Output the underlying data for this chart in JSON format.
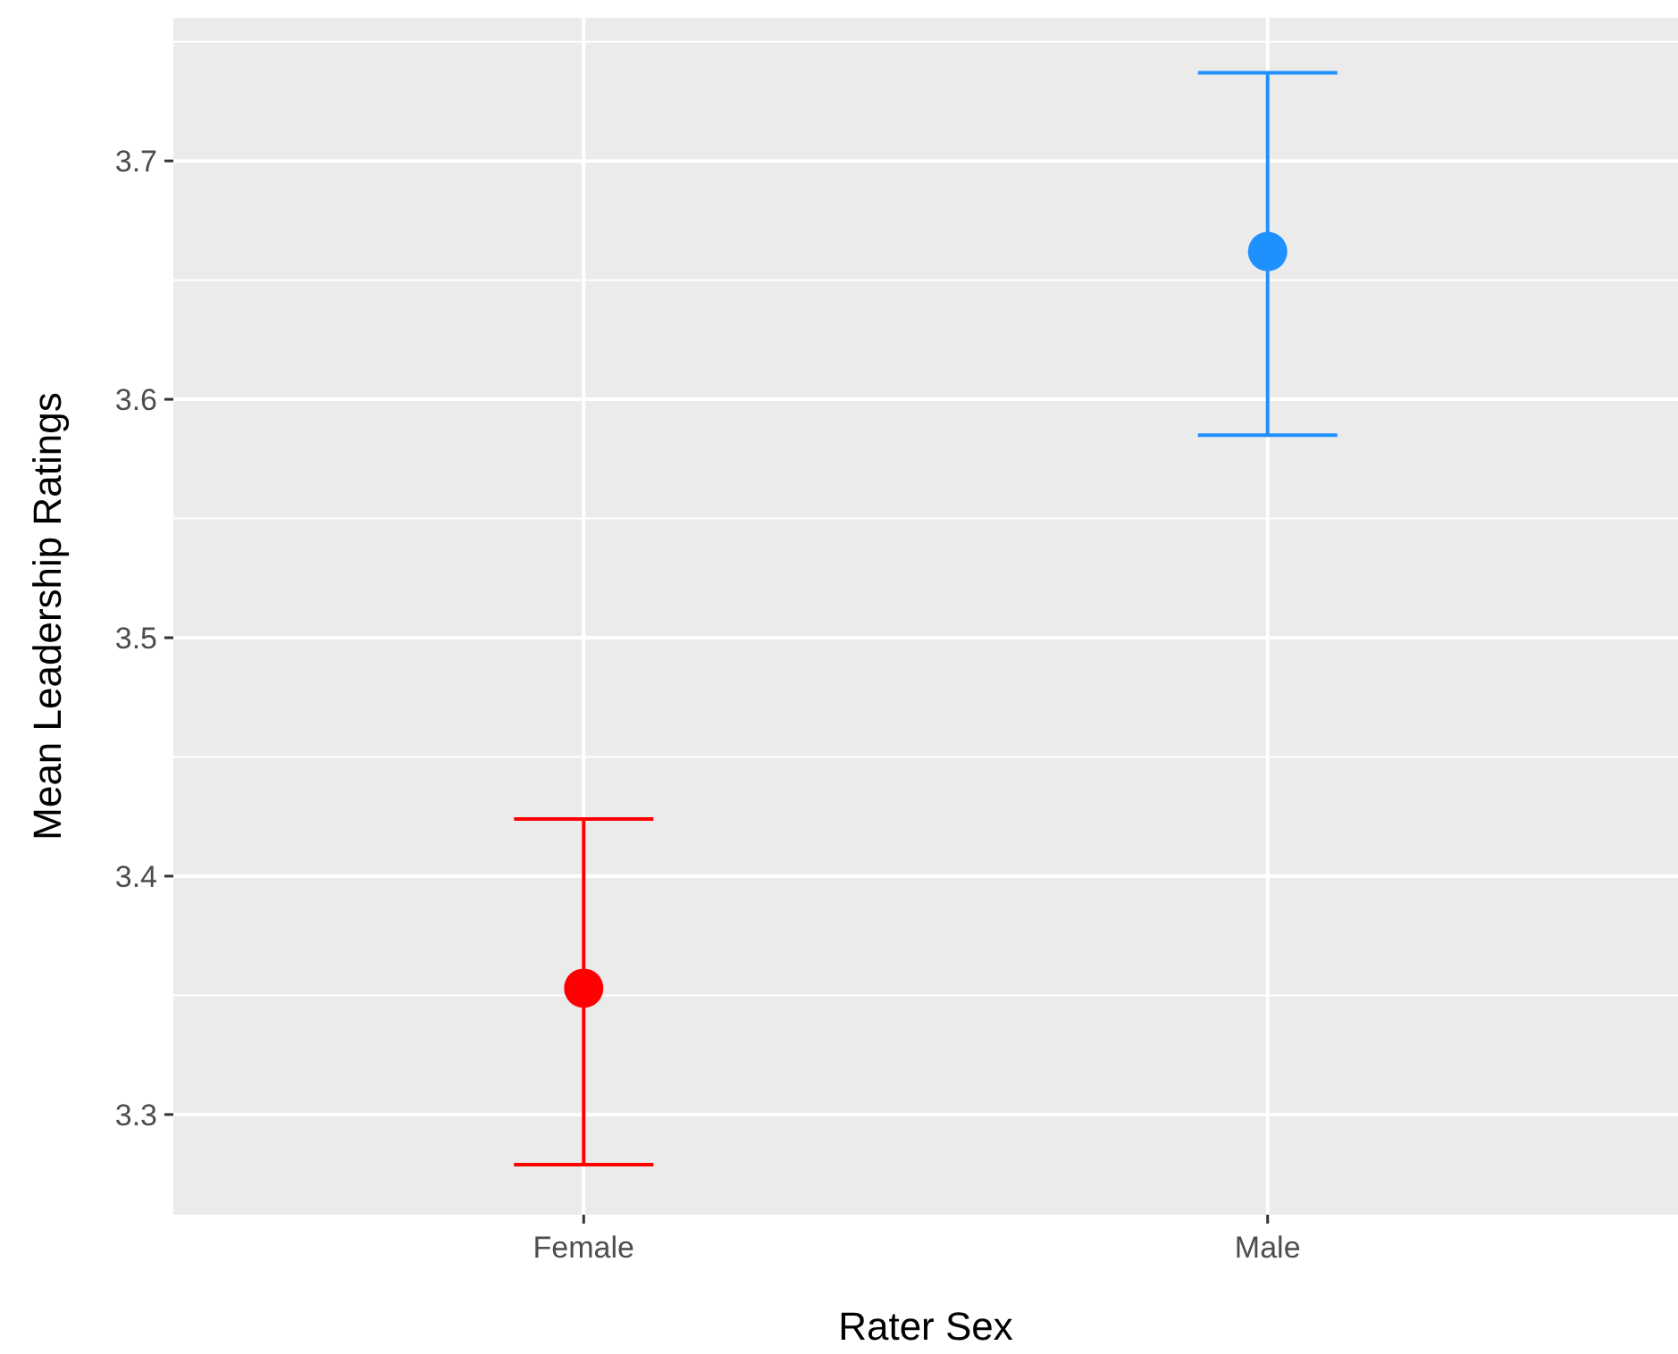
{
  "chart_data": {
    "type": "scatter",
    "xlabel": "Rater Sex",
    "ylabel": "Mean Leadership Ratings",
    "categories": [
      "Female",
      "Male"
    ],
    "values": [
      3.353,
      3.662
    ],
    "errors": [
      [
        3.279,
        3.424
      ],
      [
        3.585,
        3.737
      ]
    ],
    "colors": [
      "#ff0000",
      "#1e90ff"
    ],
    "ylim": [
      3.258,
      3.76
    ],
    "yticks": [
      3.3,
      3.4,
      3.5,
      3.6,
      3.7
    ],
    "grid": true,
    "marker": "circle"
  }
}
